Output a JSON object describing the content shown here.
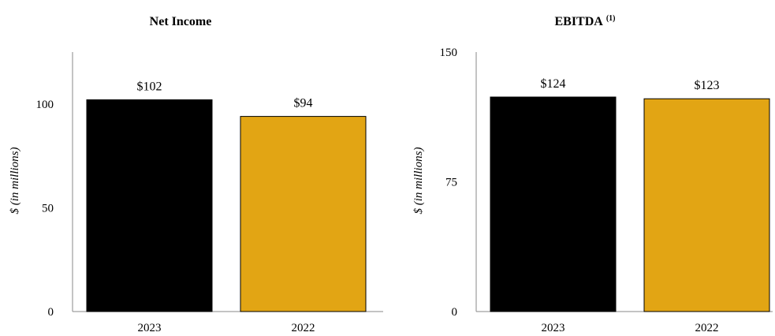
{
  "chart_data": [
    {
      "type": "bar",
      "title": "Net Income",
      "title_superscript": "",
      "ylabel": "$ (in millions)",
      "xlabel": "",
      "categories": [
        "2023",
        "2022"
      ],
      "values": [
        102,
        94
      ],
      "value_labels": [
        "$102",
        "$94"
      ],
      "colors": [
        "#000000",
        "#E2A514"
      ],
      "ylim": [
        0,
        125
      ],
      "yticks": [
        0,
        50,
        100
      ],
      "grid": false,
      "legend": "none"
    },
    {
      "type": "bar",
      "title": "EBITDA",
      "title_superscript": "(1)",
      "ylabel": "$ (in millions)",
      "xlabel": "",
      "categories": [
        "2023",
        "2022"
      ],
      "values": [
        124,
        123
      ],
      "value_labels": [
        "$124",
        "$123"
      ],
      "colors": [
        "#000000",
        "#E2A514"
      ],
      "ylim": [
        0,
        150
      ],
      "yticks": [
        0,
        75,
        150
      ],
      "grid": false,
      "legend": "none"
    }
  ]
}
